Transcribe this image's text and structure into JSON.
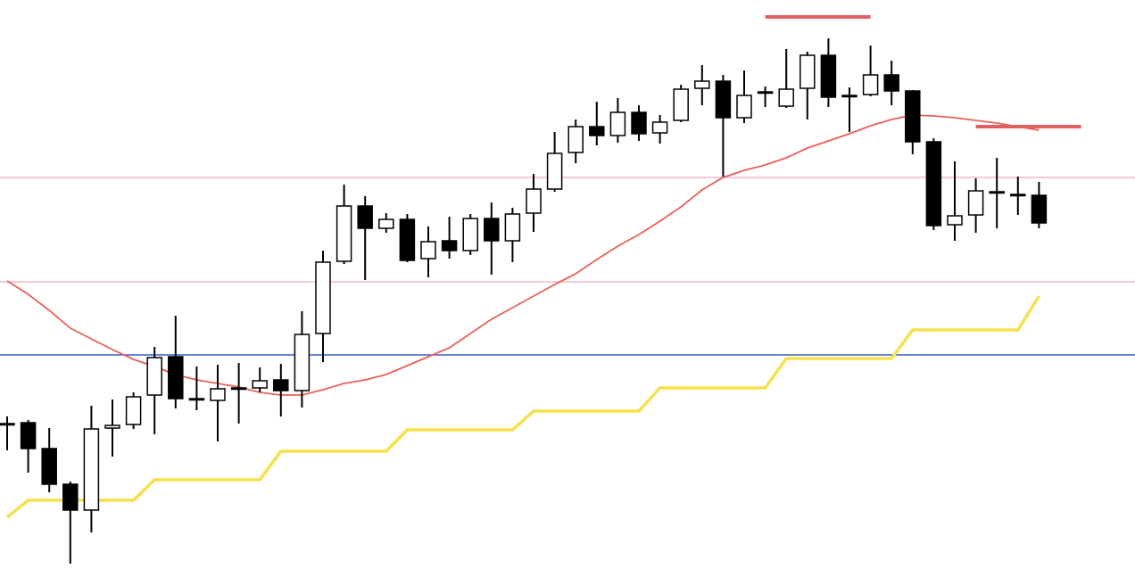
{
  "chart_data": {
    "type": "candlestick",
    "ylim": [
      0,
      656
    ],
    "candle_color_up": "#ffffff",
    "candle_color_down": "#000000",
    "open": [
      181,
      182,
      153,
      113,
      84,
      176,
      180,
      213,
      256,
      209,
      207,
      221,
      221,
      230,
      218,
      282,
      363,
      425,
      400,
      410,
      366,
      386,
      375,
      411,
      386,
      417,
      444,
      485,
      514,
      504,
      530,
      507,
      521,
      557,
      565,
      524,
      553,
      537,
      557,
      594,
      549,
      550,
      572,
      554,
      497,
      404,
      415,
      441,
      438,
      437
    ],
    "high": [
      189,
      185,
      176,
      116,
      201,
      208,
      216,
      267,
      302,
      245,
      247,
      249,
      244,
      248,
      307,
      375,
      449,
      436,
      417,
      416,
      402,
      413,
      416,
      429,
      423,
      461,
      508,
      522,
      542,
      546,
      538,
      527,
      561,
      583,
      572,
      577,
      559,
      601,
      598,
      613,
      558,
      605,
      588,
      555,
      501,
      475,
      456,
      479,
      458,
      452
    ],
    "low": [
      151,
      126,
      104,
      24,
      59,
      144,
      175,
      169,
      198,
      196,
      161,
      181,
      216,
      189,
      199,
      250,
      360,
      342,
      395,
      362,
      345,
      366,
      370,
      348,
      362,
      396,
      441,
      473,
      493,
      496,
      498,
      495,
      519,
      538,
      458,
      518,
      536,
      535,
      522,
      536,
      508,
      548,
      538,
      483,
      398,
      386,
      395,
      400,
      415,
      400
    ],
    "close": [
      181,
      153,
      113,
      84,
      175,
      179,
      211,
      255,
      209,
      209,
      220,
      221,
      229,
      218,
      281,
      362,
      425,
      400,
      410,
      364,
      385,
      375,
      411,
      386,
      416,
      444,
      484,
      514,
      504,
      530,
      506,
      519,
      556,
      565,
      524,
      549,
      553,
      556,
      594,
      547,
      549,
      572,
      554,
      497,
      403,
      414,
      442,
      441,
      438,
      406
    ],
    "lines": [
      {
        "color": "#e8605a",
        "values": [
          341,
          326,
          308,
          288,
          276,
          264,
          253,
          245,
          236,
          230,
          226,
          222,
          216,
          213,
          213,
          219,
          226,
          230,
          236,
          246,
          256,
          266,
          282,
          298,
          311,
          324,
          337,
          349,
          365,
          380,
          393,
          408,
          424,
          443,
          457,
          465,
          471,
          479,
          490,
          498,
          506,
          515,
          522,
          527,
          526,
          524,
          521,
          518,
          514,
          510
        ]
      },
      {
        "color": "#f5e14a",
        "values": [
          76,
          95,
          95,
          95,
          95,
          95,
          95,
          118,
          118,
          118,
          118,
          118,
          118,
          150,
          150,
          150,
          150,
          150,
          150,
          174,
          174,
          174,
          174,
          174,
          174,
          195,
          195,
          195,
          195,
          195,
          195,
          221,
          221,
          221,
          221,
          221,
          221,
          254,
          254,
          254,
          254,
          254,
          254,
          286,
          286,
          286,
          286,
          286,
          286,
          324
        ]
      }
    ],
    "levels": [
      {
        "value": 457,
        "color": "#f2b8c6"
      },
      {
        "value": 340,
        "color": "#f2b8c6"
      },
      {
        "value": 258,
        "color": "#3b5fc9"
      }
    ],
    "segments": [
      {
        "value": 637,
        "x": [
          36,
          41
        ],
        "color": "#e06060"
      },
      {
        "value": 514,
        "x": [
          46,
          51
        ],
        "color": "#e06060"
      }
    ]
  }
}
